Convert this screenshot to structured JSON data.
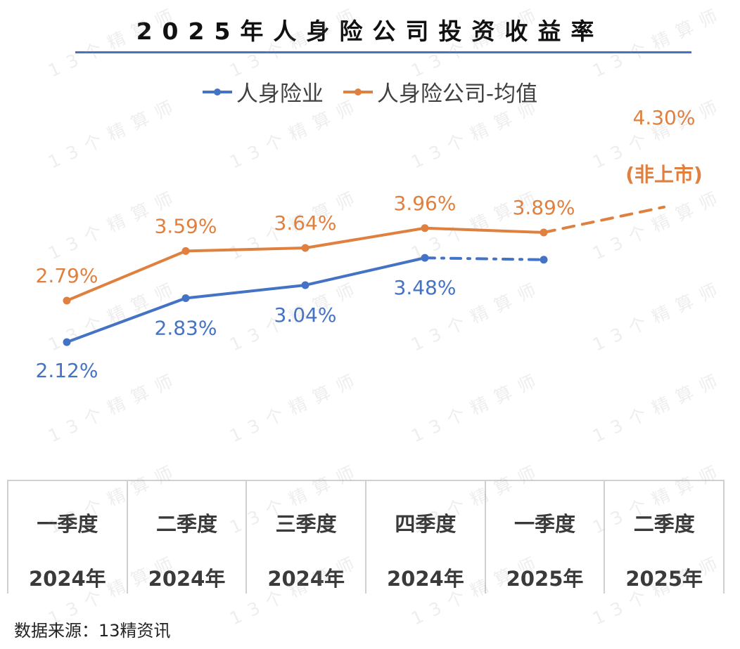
{
  "title": "2025年人身险公司投资收益率",
  "watermark": "13个精算师",
  "source": "数据来源：13精资讯",
  "colors": {
    "blue": "#4472c4",
    "orange": "#e0803e",
    "rule": "#4472c4"
  },
  "table": {
    "columns": [
      {
        "quarter": "一季度",
        "year": "2024年"
      },
      {
        "quarter": "二季度",
        "year": "2024年"
      },
      {
        "quarter": "三季度",
        "year": "2024年"
      },
      {
        "quarter": "四季度",
        "year": "2024年"
      },
      {
        "quarter": "一季度",
        "year": "2025年"
      },
      {
        "quarter": "二季度",
        "year": "2025年"
      }
    ]
  },
  "chart_data": {
    "type": "line",
    "title": "2025年人身险公司投资收益率",
    "categories": [
      "一季度 2024年",
      "二季度 2024年",
      "三季度 2024年",
      "四季度 2024年",
      "一季度 2025年",
      "二季度 2025年"
    ],
    "legend_position": "top-center",
    "grid": false,
    "series": [
      {
        "name": "人身险业",
        "color": "#4472c4",
        "values": [
          2.12,
          2.83,
          3.04,
          3.48,
          3.45,
          null
        ],
        "labels": [
          "2.12%",
          "2.83%",
          "3.04%",
          "3.48%",
          "",
          ""
        ],
        "dashed_from_index": 3
      },
      {
        "name": "人身险公司-均值",
        "color": "#e0803e",
        "values": [
          2.79,
          3.59,
          3.64,
          3.96,
          3.89,
          4.3
        ],
        "labels": [
          "2.79%",
          "3.59%",
          "3.64%",
          "3.96%",
          "3.89%",
          "4.30%"
        ],
        "dashed_from_index": 4,
        "extra_annotation": "(非上市)"
      }
    ]
  }
}
